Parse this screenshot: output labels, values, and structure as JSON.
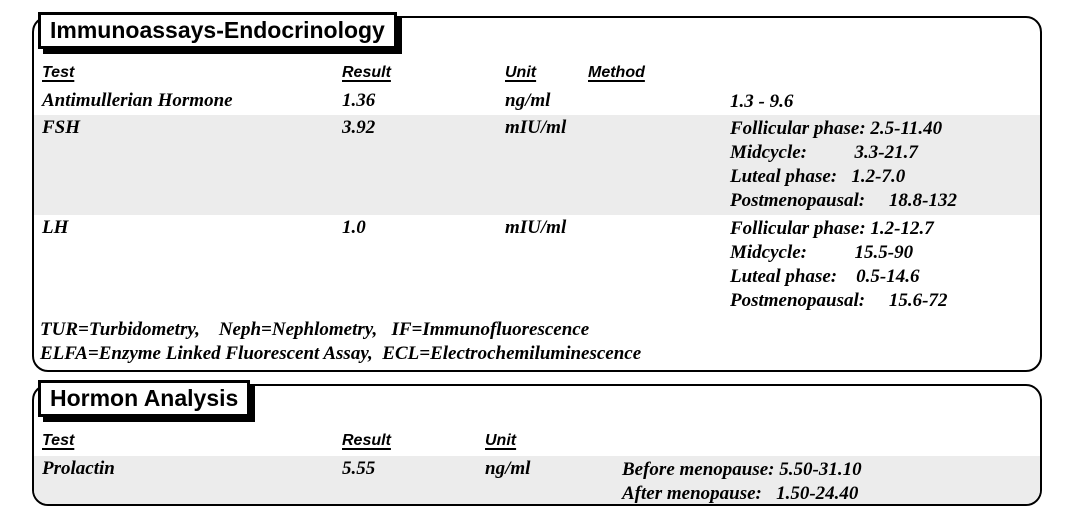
{
  "panels": [
    {
      "title": "Immunoassays-Endocrinology",
      "headers": {
        "test": "Test",
        "result": "Result",
        "unit": "Unit",
        "method": "Method"
      },
      "rows": [
        {
          "test": "Antimullerian Hormone",
          "result": "1.36",
          "unit": "ng/ml",
          "ranges": [
            "1.3 - 9.6"
          ]
        },
        {
          "test": "FSH",
          "result": "3.92",
          "unit": "mIU/ml",
          "ranges": [
            "Follicular phase: 2.5-11.40",
            "Midcycle:          3.3-21.7",
            "Luteal phase:   1.2-7.0",
            "Postmenopausal:     18.8-132"
          ]
        },
        {
          "test": "LH",
          "result": "1.0",
          "unit": "mIU/ml",
          "ranges": [
            "Follicular phase: 1.2-12.7",
            "Midcycle:          15.5-90",
            "Luteal phase:    0.5-14.6",
            "Postmenopausal:     15.6-72"
          ]
        }
      ],
      "footnotes": [
        "TUR=Turbidometry,    Neph=Nephlometry,   IF=Immunofluorescence",
        "ELFA=Enzyme Linked Fluorescent Assay,  ECL=Electrochemiluminescence"
      ]
    },
    {
      "title": "Hormon Analysis",
      "headers": {
        "test": "Test",
        "result": "Result",
        "unit": "Unit"
      },
      "rows": [
        {
          "test": "Prolactin",
          "result": "5.55",
          "unit": "ng/ml",
          "ranges": [
            "Before menopause: 5.50-31.10",
            "After menopause:   1.50-24.40"
          ]
        }
      ]
    }
  ],
  "colors": {
    "row_shade": "#ececec",
    "border": "#000000",
    "text": "#000000"
  }
}
